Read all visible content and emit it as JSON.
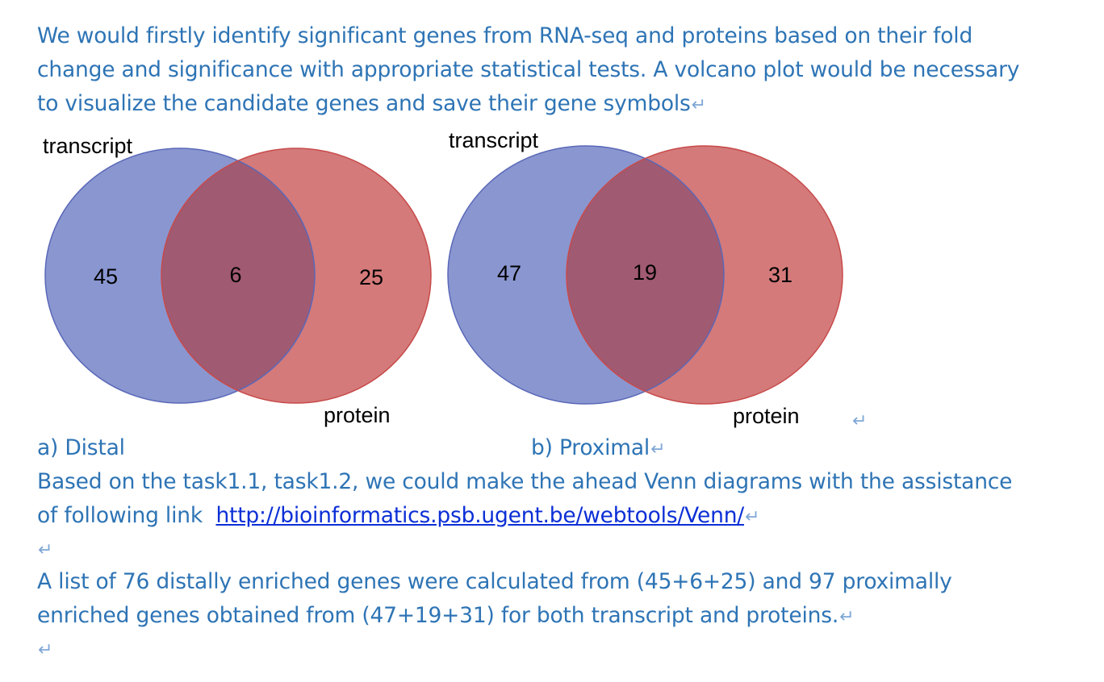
{
  "intro": {
    "line1": "We would firstly identify significant genes from RNA-seq and proteins based on their fold",
    "line2": "change and significance with appropriate statistical tests. A volcano plot would be necessary",
    "line3": "to visualize the candidate genes and save their gene symbols"
  },
  "paragraph_mark": "↵",
  "venn_distal": {
    "set_a_label": "transcript",
    "set_b_label": "protein",
    "only_a": "45",
    "both": "6",
    "only_b": "25",
    "caption": "a)   Distal"
  },
  "venn_proximal": {
    "set_a_label": "transcript",
    "set_b_label": "protein",
    "only_a": "47",
    "both": "19",
    "only_b": "31",
    "caption": "b) Proximal"
  },
  "colors": {
    "set_a_fill": "#8A96D0",
    "set_a_stroke": "#5A68B8",
    "set_b_fill": "#D47A7A",
    "set_b_stroke": "#C84A4A",
    "overlap_fill": "#A05A72",
    "text_blue": "#2E74B5",
    "link_blue": "#0B2FD6"
  },
  "body": {
    "line1": "Based on the task1.1, task1.2, we could make the ahead Venn diagrams with the assistance",
    "line2_prefix": "of following link  ",
    "link": "http://bioinformatics.psb.ugent.be/webtools/Venn/",
    "summary_line1": "A list of 76 distally enriched genes were calculated from (45+6+25) and 97 proximally",
    "summary_line2": "enriched genes obtained from (47+19+31) for both transcript and proteins."
  }
}
